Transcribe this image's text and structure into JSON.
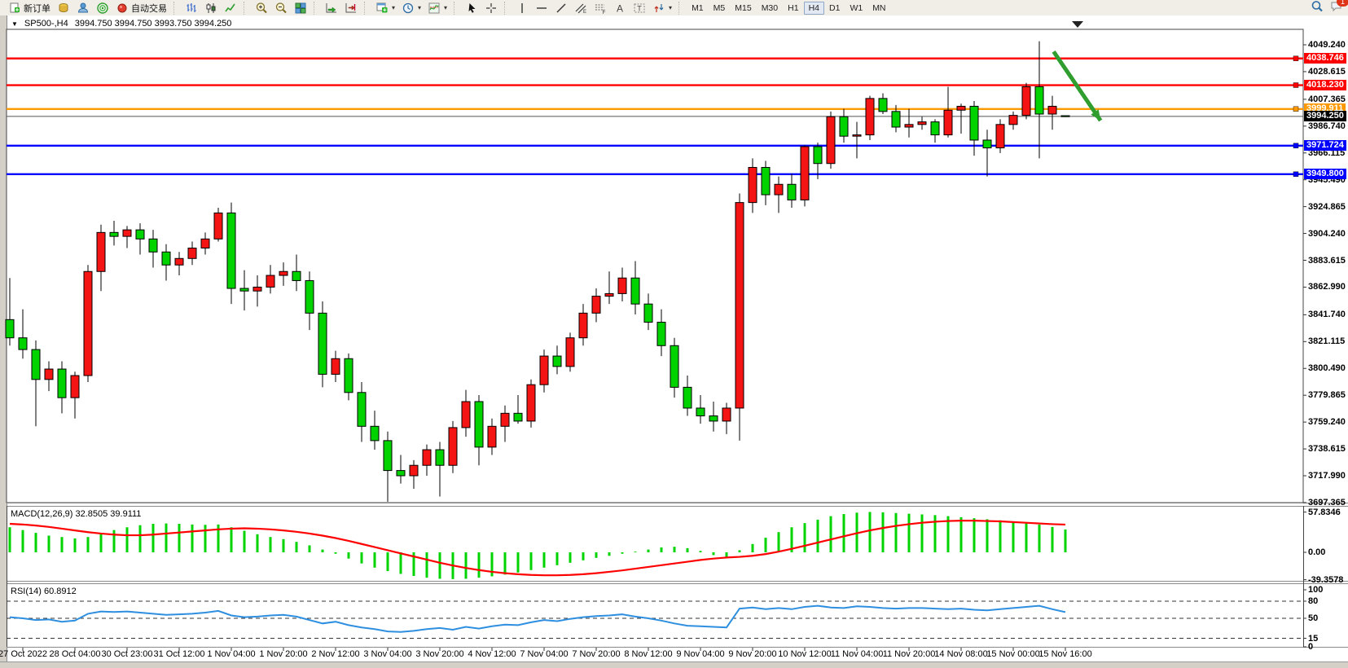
{
  "toolbar": {
    "new_order_label": "新订单",
    "autotrade_label": "自动交易",
    "timeframes": [
      "M1",
      "M5",
      "M15",
      "M30",
      "H1",
      "H4",
      "D1",
      "W1",
      "MN"
    ],
    "active_timeframe": "H4",
    "chat_badge_count": "1",
    "items": [
      {
        "type": "button",
        "name": "new-order-button",
        "icon": "new-order-icon",
        "label_key": "new_order_label"
      },
      {
        "type": "button",
        "name": "market-data-button",
        "icon": "market-data-icon"
      },
      {
        "type": "button",
        "name": "community-button",
        "icon": "community-icon"
      },
      {
        "type": "button",
        "name": "news-button",
        "icon": "news-icon"
      },
      {
        "type": "button",
        "name": "autotrade-button",
        "icon": "autotrade-icon",
        "label_key": "autotrade_label"
      },
      {
        "type": "sep"
      },
      {
        "type": "button",
        "name": "bar-chart-button",
        "icon": "bar-chart-icon"
      },
      {
        "type": "button",
        "name": "candlestick-chart-button",
        "icon": "candlestick-chart-icon"
      },
      {
        "type": "button",
        "name": "line-chart-button",
        "icon": "line-chart-icon"
      },
      {
        "type": "sep"
      },
      {
        "type": "button",
        "name": "zoom-in-button",
        "icon": "zoom-in-icon"
      },
      {
        "type": "button",
        "name": "zoom-out-button",
        "icon": "zoom-out-icon"
      },
      {
        "type": "button",
        "name": "tile-windows-button",
        "icon": "tile-windows-icon"
      },
      {
        "type": "sep"
      },
      {
        "type": "button",
        "name": "auto-scroll-button",
        "icon": "auto-scroll-icon"
      },
      {
        "type": "button",
        "name": "chart-shift-button",
        "icon": "chart-shift-icon"
      },
      {
        "type": "sep"
      },
      {
        "type": "button",
        "name": "new-chart-button",
        "icon": "new-chart-icon",
        "dropdown": true
      },
      {
        "type": "button",
        "name": "profiles-button",
        "icon": "profiles-icon",
        "dropdown": true
      },
      {
        "type": "button",
        "name": "indicators-button",
        "icon": "indicators-icon",
        "dropdown": true
      },
      {
        "type": "sep"
      },
      {
        "type": "button",
        "name": "cursor-button",
        "icon": "cursor-icon"
      },
      {
        "type": "button",
        "name": "crosshair-button",
        "icon": "crosshair-icon"
      },
      {
        "type": "sep"
      },
      {
        "type": "button",
        "name": "vertical-line-button",
        "icon": "vertical-line-icon"
      },
      {
        "type": "button",
        "name": "horizontal-line-button",
        "icon": "horizontal-line-icon"
      },
      {
        "type": "button",
        "name": "trendline-button",
        "icon": "trendline-icon"
      },
      {
        "type": "button",
        "name": "channel-button",
        "icon": "channel-icon"
      },
      {
        "type": "button",
        "name": "fibonacci-button",
        "icon": "fibonacci-icon"
      },
      {
        "type": "button",
        "name": "text-button",
        "icon": "text-icon"
      },
      {
        "type": "button",
        "name": "text-label-button",
        "icon": "text-label-icon"
      },
      {
        "type": "button",
        "name": "arrows-button",
        "icon": "arrows-icon",
        "dropdown": true
      },
      {
        "type": "sep"
      }
    ]
  },
  "chart": {
    "title_symbol": "SP500-,H4",
    "title_ohlc": "3994.750 3994.750 3993.750 3994.250",
    "macd_label": "MACD(12,26,9) 32.8505 39.9111",
    "rsi_label": "RSI(14) 60.8912"
  },
  "chart_data": {
    "type": "candlestick",
    "symbol": "SP500-",
    "timeframe": "H4",
    "current_bar": {
      "open": 3994.75,
      "high": 3994.75,
      "low": 3993.75,
      "close": 3994.25
    },
    "colors": {
      "up": "#f51414",
      "down": "#00d300",
      "outline": "#000000",
      "macd_histogram": "#00d300",
      "macd_signal": "#ff0000",
      "rsi_line": "#2e8fe0"
    },
    "price_axis_ticks": [
      "4049.240",
      "4028.615",
      "4007.365",
      "3986.740",
      "3966.115",
      "3945.490",
      "3924.865",
      "3904.240",
      "3883.615",
      "3862.990",
      "3841.740",
      "3821.115",
      "3800.490",
      "3779.865",
      "3759.240",
      "3738.615",
      "3717.990",
      "3697.365"
    ],
    "time_axis_labels": [
      "27 Oct 2022",
      "28 Oct 04:00",
      "30 Oct 23:00",
      "31 Oct 12:00",
      "1 Nov 04:00",
      "1 Nov 20:00",
      "2 Nov 12:00",
      "3 Nov 04:00",
      "3 Nov 20:00",
      "4 Nov 12:00",
      "7 Nov 04:00",
      "7 Nov 20:00",
      "8 Nov 12:00",
      "9 Nov 04:00",
      "9 Nov 20:00",
      "10 Nov 12:00",
      "11 Nov 04:00",
      "11 Nov 20:00",
      "14 Nov 08:00",
      "15 Nov 00:00",
      "15 Nov 16:00"
    ],
    "horizontal_lines": [
      {
        "price": 4038.746,
        "label": "4038.746",
        "color": "#ff0000"
      },
      {
        "price": 4018.23,
        "label": "4018.230",
        "color": "#ff0000"
      },
      {
        "price": 3999.911,
        "label": "3999.911",
        "color": "#ff9900"
      },
      {
        "price": 3971.724,
        "label": "3971.724",
        "color": "#0000ff"
      },
      {
        "price": 3949.8,
        "label": "3949.800",
        "color": "#0000ff"
      }
    ],
    "bid_line": {
      "price": 3994.25,
      "label": "3994.250",
      "color": "#000000"
    },
    "annotation_arrow": {
      "from_bar": 80.1,
      "from_price": 4044,
      "to_bar": 83.7,
      "to_price": 3991,
      "color": "#2f9e2f"
    },
    "candles": [
      [
        3838,
        3870,
        3818,
        3824
      ],
      [
        3824,
        3846,
        3808,
        3815
      ],
      [
        3815,
        3822,
        3756,
        3792
      ],
      [
        3792,
        3806,
        3783,
        3800
      ],
      [
        3800,
        3806,
        3766,
        3778
      ],
      [
        3778,
        3798,
        3762,
        3795
      ],
      [
        3795,
        3880,
        3790,
        3875
      ],
      [
        3875,
        3911,
        3860,
        3905
      ],
      [
        3905,
        3914,
        3895,
        3902
      ],
      [
        3902,
        3910,
        3893,
        3907
      ],
      [
        3907,
        3912,
        3888,
        3900
      ],
      [
        3900,
        3907,
        3878,
        3890
      ],
      [
        3890,
        3896,
        3868,
        3880
      ],
      [
        3880,
        3890,
        3872,
        3885
      ],
      [
        3885,
        3898,
        3880,
        3893
      ],
      [
        3893,
        3905,
        3888,
        3900
      ],
      [
        3900,
        3924,
        3898,
        3920
      ],
      [
        3920,
        3928,
        3850,
        3862
      ],
      [
        3862,
        3876,
        3845,
        3860
      ],
      [
        3860,
        3872,
        3848,
        3863
      ],
      [
        3863,
        3880,
        3858,
        3872
      ],
      [
        3872,
        3882,
        3864,
        3875
      ],
      [
        3875,
        3888,
        3860,
        3868
      ],
      [
        3868,
        3875,
        3830,
        3843
      ],
      [
        3843,
        3852,
        3786,
        3796
      ],
      [
        3796,
        3814,
        3790,
        3808
      ],
      [
        3808,
        3812,
        3776,
        3782
      ],
      [
        3782,
        3790,
        3744,
        3756
      ],
      [
        3756,
        3768,
        3738,
        3745
      ],
      [
        3745,
        3752,
        3698,
        3722
      ],
      [
        3722,
        3734,
        3712,
        3718
      ],
      [
        3718,
        3730,
        3708,
        3726
      ],
      [
        3726,
        3742,
        3718,
        3738
      ],
      [
        3738,
        3744,
        3702,
        3726
      ],
      [
        3726,
        3760,
        3720,
        3755
      ],
      [
        3755,
        3784,
        3748,
        3775
      ],
      [
        3775,
        3780,
        3726,
        3740
      ],
      [
        3740,
        3762,
        3734,
        3756
      ],
      [
        3756,
        3772,
        3744,
        3766
      ],
      [
        3766,
        3780,
        3758,
        3760
      ],
      [
        3760,
        3792,
        3755,
        3788
      ],
      [
        3788,
        3815,
        3782,
        3810
      ],
      [
        3810,
        3818,
        3796,
        3802
      ],
      [
        3802,
        3828,
        3798,
        3824
      ],
      [
        3824,
        3850,
        3818,
        3843
      ],
      [
        3843,
        3862,
        3836,
        3856
      ],
      [
        3856,
        3875,
        3850,
        3858
      ],
      [
        3858,
        3878,
        3852,
        3870
      ],
      [
        3870,
        3883,
        3842,
        3850
      ],
      [
        3850,
        3858,
        3830,
        3836
      ],
      [
        3836,
        3846,
        3810,
        3818
      ],
      [
        3818,
        3824,
        3778,
        3786
      ],
      [
        3786,
        3795,
        3764,
        3770
      ],
      [
        3770,
        3780,
        3758,
        3764
      ],
      [
        3764,
        3775,
        3752,
        3760
      ],
      [
        3760,
        3774,
        3750,
        3770
      ],
      [
        3770,
        3935,
        3745,
        3928
      ],
      [
        3928,
        3962,
        3920,
        3955
      ],
      [
        3955,
        3960,
        3926,
        3934
      ],
      [
        3934,
        3948,
        3920,
        3942
      ],
      [
        3942,
        3950,
        3924,
        3930
      ],
      [
        3930,
        3972,
        3925,
        3971
      ],
      [
        3971,
        3974,
        3946,
        3958
      ],
      [
        3958,
        3998,
        3954,
        3994
      ],
      [
        3994,
        4000,
        3974,
        3979
      ],
      [
        3979,
        3990,
        3962,
        3980
      ],
      [
        3980,
        4010,
        3976,
        4008
      ],
      [
        4008,
        4012,
        3996,
        3998
      ],
      [
        3998,
        4003,
        3982,
        3986
      ],
      [
        3986,
        4000,
        3978,
        3988
      ],
      [
        3988,
        3994,
        3984,
        3990
      ],
      [
        3990,
        3992,
        3974,
        3980
      ],
      [
        3980,
        4017,
        3978,
        3999
      ],
      [
        3999,
        4004,
        3981,
        4002
      ],
      [
        4002,
        4006,
        3964,
        3976
      ],
      [
        3976,
        3984,
        3948,
        3970
      ],
      [
        3970,
        3992,
        3966,
        3988
      ],
      [
        3988,
        3998,
        3984,
        3995
      ],
      [
        3995,
        4020,
        3992,
        4017
      ],
      [
        4017,
        4052,
        3962,
        3996
      ],
      [
        3996,
        4010,
        3984,
        4002
      ],
      [
        3994.75,
        3994.75,
        3993.75,
        3994.25
      ]
    ],
    "macd": {
      "params": "12,26,9",
      "value": 32.8505,
      "signal_value": 39.9111,
      "axis_ticks": [
        "57.8346",
        "0.00",
        "-39.3578"
      ],
      "axis_values": [
        57.8346,
        0.0,
        -39.3578
      ],
      "histogram": [
        36,
        32,
        28,
        24,
        22,
        20,
        22,
        27,
        32,
        36,
        39,
        41,
        41.5,
        41,
        40,
        39.5,
        40,
        36,
        31,
        26,
        22,
        19,
        15,
        10,
        4,
        -2,
        -9,
        -16,
        -22,
        -27,
        -31,
        -34,
        -36.5,
        -38,
        -38.5,
        -38,
        -36.5,
        -34.5,
        -32,
        -29,
        -25.5,
        -22,
        -18.5,
        -15,
        -11.5,
        -8,
        -5,
        -2,
        1,
        4,
        7,
        8,
        6,
        2,
        -4,
        -8,
        3,
        12,
        21,
        29,
        36,
        42,
        47,
        52,
        55,
        57,
        58,
        57.5,
        56.5,
        55.5,
        54.5,
        53.5,
        52,
        50.5,
        49,
        47.5,
        46,
        44.5,
        43,
        40,
        36.5,
        32.85
      ],
      "signal": [
        41,
        40,
        38.5,
        36.5,
        34,
        31.5,
        29,
        27,
        25.5,
        24.5,
        24.5,
        25.5,
        27,
        28.5,
        30,
        31.5,
        33,
        34,
        34.5,
        34,
        33,
        31.5,
        29.5,
        27,
        24,
        20.5,
        16.5,
        12,
        7.5,
        3,
        -1.5,
        -6,
        -10.5,
        -15,
        -19,
        -22.5,
        -25.5,
        -28,
        -30,
        -31.5,
        -32.5,
        -33,
        -33,
        -32.5,
        -31.5,
        -30,
        -28,
        -26,
        -23.5,
        -21,
        -18.5,
        -16,
        -13.5,
        -11,
        -9,
        -7.5,
        -6.5,
        -5,
        -2.5,
        1,
        5,
        9.5,
        14,
        18.5,
        23,
        27.5,
        31.5,
        35,
        38,
        40.5,
        42.5,
        44,
        45,
        45.5,
        45.5,
        45,
        44.5,
        43.5,
        42.5,
        41.5,
        40.5,
        39.9
      ]
    },
    "rsi": {
      "period": 14,
      "value": 60.8912,
      "axis_ticks": [
        "100",
        "80",
        "50",
        "15",
        "0"
      ],
      "axis_values": [
        100,
        80,
        50,
        15,
        0
      ],
      "dashed_levels": [
        80,
        50,
        15
      ],
      "series": [
        52,
        50,
        47,
        48,
        44,
        46,
        58,
        62,
        61,
        62,
        60,
        58,
        56,
        57,
        58,
        60,
        63,
        55,
        52,
        53,
        55,
        56,
        53,
        47,
        41,
        44,
        38,
        34,
        31,
        27,
        26,
        28,
        31,
        33,
        30,
        35,
        32,
        36,
        39,
        38,
        43,
        47,
        45,
        49,
        52,
        54,
        55,
        57,
        53,
        50,
        46,
        41,
        37,
        36,
        35,
        34,
        67,
        69,
        66,
        68,
        66,
        70,
        72,
        69,
        68,
        71,
        70,
        68,
        67,
        68,
        68,
        67,
        66,
        67,
        65,
        64,
        66,
        68,
        70,
        72,
        66,
        60.89
      ]
    }
  }
}
